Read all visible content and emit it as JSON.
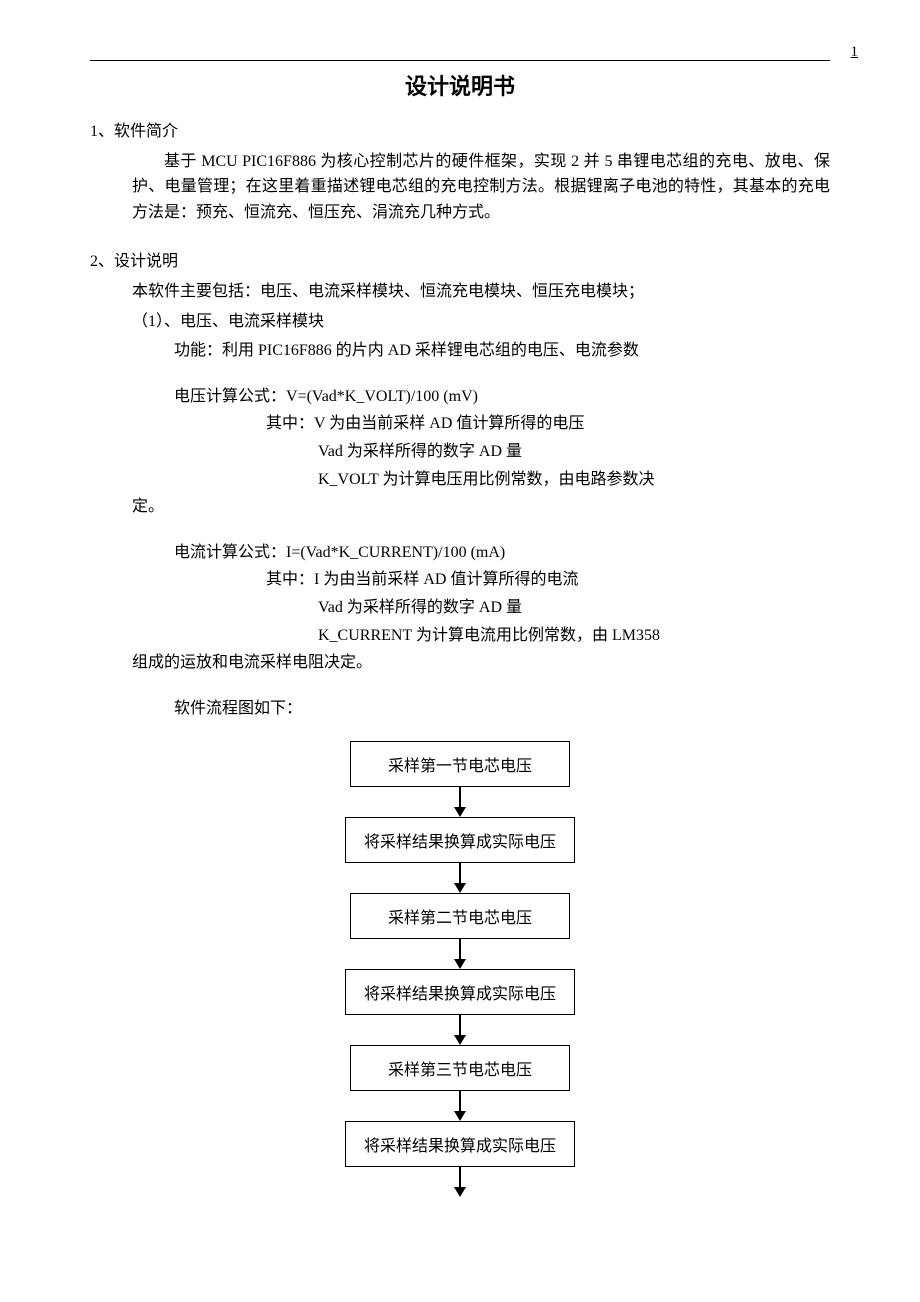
{
  "page_number": "1",
  "title": "设计说明书",
  "section1": {
    "heading": "1、软件简介",
    "body": "基于 MCU PIC16F886 为核心控制芯片的硬件框架，实现 2 并 5 串锂电芯组的充电、放电、保护、电量管理；在这里着重描述锂电芯组的充电控制方法。根据锂离子电池的特性，其基本的充电方法是：预充、恒流充、恒压充、涓流充几种方式。"
  },
  "section2": {
    "heading": "2、设计说明",
    "intro": "本软件主要包括：电压、电流采样模块、恒流充电模块、恒压充电模块；",
    "sub1_heading": "（1）、电压、电流采样模块",
    "sub1_function": "功能：利用 PIC16F886 的片内 AD 采样锂电芯组的电压、电流参数",
    "voltage_formula": "电压计算公式：V=(Vad*K_VOLT)/100 (mV)",
    "voltage_where": "其中：V 为由当前采样 AD 值计算所得的电压",
    "voltage_vad": "Vad 为采样所得的数字 AD 量",
    "voltage_kvolt": "K_VOLT 为计算电压用比例常数，由电路参数决",
    "voltage_cont": "定。",
    "current_formula": "电流计算公式：I=(Vad*K_CURRENT)/100 (mA)",
    "current_where": "其中：I 为由当前采样 AD 值计算所得的电流",
    "current_vad": "Vad 为采样所得的数字 AD 量",
    "current_kcurrent": "K_CURRENT 为计算电流用比例常数，由 LM358",
    "current_cont": "组成的运放和电流采样电阻决定。",
    "flowchart_intro": "软件流程图如下："
  },
  "flowchart": {
    "type": "flowchart",
    "box_border_color": "#000000",
    "box_bg_color": "#ffffff",
    "arrow_color": "#000000",
    "text_color": "#000000",
    "font_size": 16,
    "box_min_width": 220,
    "box_padding_v": 10,
    "box_padding_h": 18,
    "arrow_length": 30,
    "nodes": [
      {
        "id": "n1",
        "label": "采样第一节电芯电压"
      },
      {
        "id": "n2",
        "label": "将采样结果换算成实际电压"
      },
      {
        "id": "n3",
        "label": "采样第二节电芯电压"
      },
      {
        "id": "n4",
        "label": "将采样结果换算成实际电压"
      },
      {
        "id": "n5",
        "label": "采样第三节电芯电压"
      },
      {
        "id": "n6",
        "label": "将采样结果换算成实际电压"
      }
    ]
  }
}
